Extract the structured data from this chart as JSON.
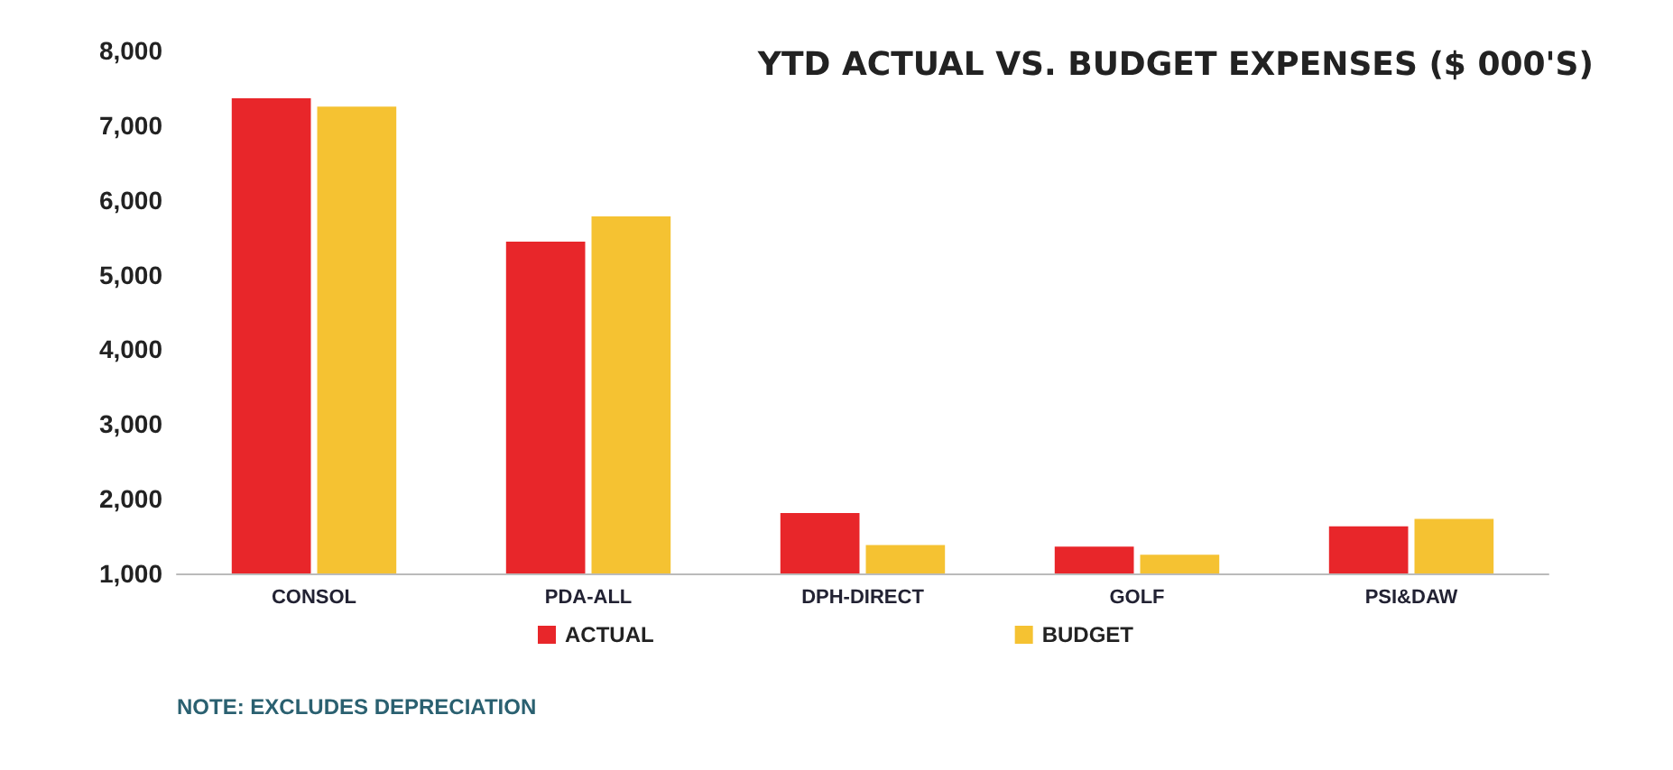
{
  "chart_data": {
    "type": "bar",
    "title": "YTD ACTUAL VS. BUDGET EXPENSES ($ 000'S)",
    "categories": [
      "CONSOL",
      "PDA-ALL",
      "DPH-DIRECT",
      "GOLF",
      "PSI&DAW"
    ],
    "series": [
      {
        "name": "ACTUAL",
        "color": "#e8262a",
        "values": [
          7360,
          5440,
          1810,
          1360,
          1630
        ]
      },
      {
        "name": "BUDGET",
        "color": "#f5c232",
        "values": [
          7250,
          5780,
          1380,
          1250,
          1730
        ]
      }
    ],
    "ylim": [
      1000,
      8000
    ],
    "yticks": [
      {
        "value": 1000,
        "label": "1,000"
      },
      {
        "value": 2000,
        "label": "2,000"
      },
      {
        "value": 3000,
        "label": "3,000"
      },
      {
        "value": 4000,
        "label": "4,000"
      },
      {
        "value": 5000,
        "label": "5,000"
      },
      {
        "value": 6000,
        "label": "6,000"
      },
      {
        "value": 7000,
        "label": "7,000"
      },
      {
        "value": 8000,
        "label": "8,000"
      }
    ],
    "grid": false,
    "legend": "bottom",
    "annotations": [
      "NOTE: EXCLUDES DEPRECIATION"
    ]
  }
}
